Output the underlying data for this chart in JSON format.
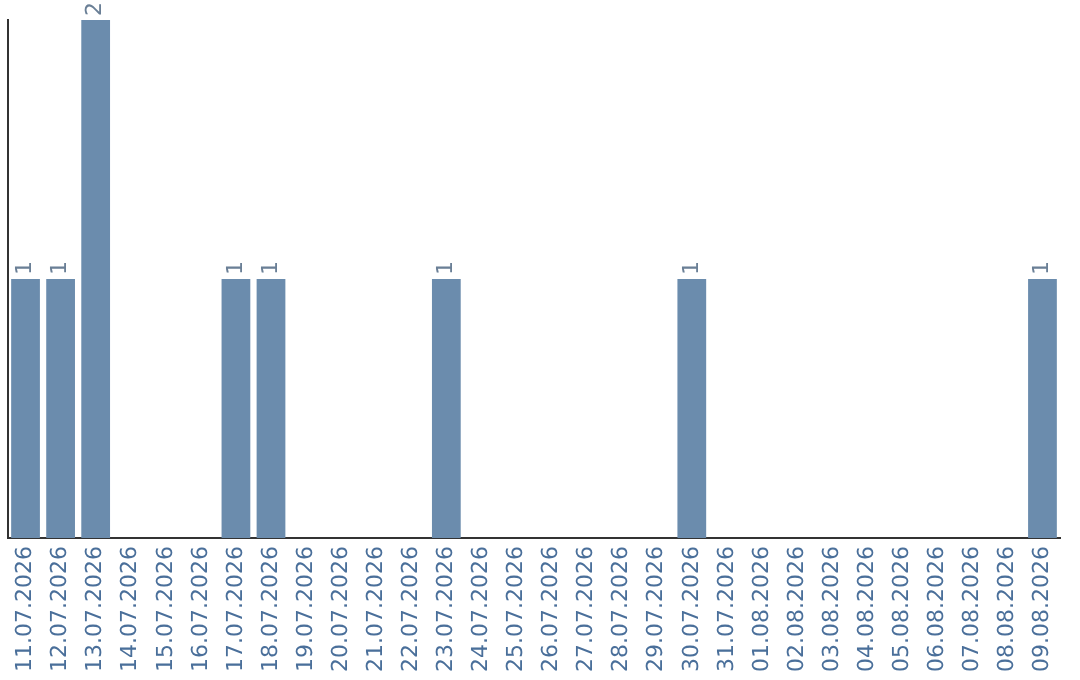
{
  "chart_data": {
    "type": "bar",
    "categories": [
      "11.07.2026",
      "12.07.2026",
      "13.07.2026",
      "14.07.2026",
      "15.07.2026",
      "16.07.2026",
      "17.07.2026",
      "18.07.2026",
      "19.07.2026",
      "20.07.2026",
      "21.07.2026",
      "22.07.2026",
      "23.07.2026",
      "24.07.2026",
      "25.07.2026",
      "26.07.2026",
      "27.07.2026",
      "28.07.2026",
      "29.07.2026",
      "30.07.2026",
      "31.07.2026",
      "01.08.2026",
      "02.08.2026",
      "03.08.2026",
      "04.08.2026",
      "05.08.2026",
      "06.08.2026",
      "07.08.2026",
      "08.08.2026",
      "09.08.2026"
    ],
    "values": [
      1,
      1,
      2,
      0,
      0,
      0,
      1,
      1,
      0,
      0,
      0,
      0,
      1,
      0,
      0,
      0,
      0,
      0,
      0,
      1,
      0,
      0,
      0,
      0,
      0,
      0,
      0,
      0,
      0,
      1
    ],
    "value_labels": [
      "1",
      "1",
      "2",
      null,
      null,
      null,
      "1",
      "1",
      null,
      null,
      null,
      null,
      "1",
      null,
      null,
      null,
      null,
      null,
      null,
      "1",
      null,
      null,
      null,
      null,
      null,
      null,
      null,
      null,
      null,
      "1"
    ],
    "color": "#6b8cad",
    "tick_labels": "x",
    "grid": false,
    "legend": false
  }
}
